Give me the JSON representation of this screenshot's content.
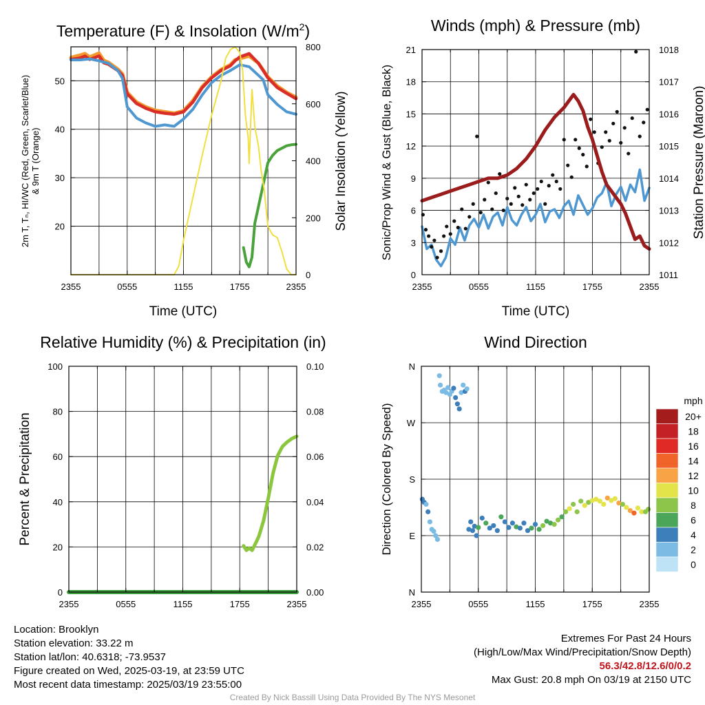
{
  "titles": {
    "temp_prefix": "Temperature (F) & Insolation (W/m",
    "temp_sup": "2",
    "temp_suffix": ")",
    "winds": "Winds (mph) & Pressure (mb)",
    "rh": "Relative Humidity (%) & Precipitation (in)",
    "dir": "Wind Direction"
  },
  "time_ticks": [
    "2355",
    "0555",
    "1155",
    "1755",
    "2355"
  ],
  "axis_labels": {
    "time": "Time (UTC)",
    "temp_y_line1": "2m T, Tₙ, HI/WC (Red, Green, Scarlet/Blue)",
    "temp_y_line2": "& 9m T (Orange)",
    "temp_y_right": "Solar Insolation (Yellow)",
    "winds_y_left": "Sonic/Prop Wind & Gust (Blue, Black)",
    "winds_y_right": "Station Pressure (Maroon)",
    "rh_y_left": "Percent & Precipitation",
    "dir_y_left": "Direction (Colored By Speed)"
  },
  "legend": {
    "unit": "mph",
    "labels": [
      "20+",
      "18",
      "16",
      "14",
      "12",
      "10",
      "8",
      "6",
      "4",
      "2",
      "0"
    ],
    "colors": [
      "#a51c1c",
      "#c42126",
      "#df2a26",
      "#f0642a",
      "#f8a446",
      "#e3e34a",
      "#8dc54b",
      "#4ca65a",
      "#3d7fba",
      "#7bbbe4",
      "#bfe3f6"
    ]
  },
  "info_left": [
    "Location: Brooklyn",
    "Station elevation: 33.22 m",
    "Station lat/lon: 40.6318; -73.9537",
    "Figure created on Wed, 2025-03-19, at 23:59 UTC",
    "Most recent data timestamp: 2025/03/19 23:55:00"
  ],
  "info_right": {
    "line1": "Extremes For Past 24 Hours",
    "line2": "(High/Low/Max Wind/Precipitation/Snow Depth)",
    "values": "56.3/42.8/12.6/0/0.2",
    "gust": "Max Gust: 20.8 mph On 03/19 at 2150 UTC"
  },
  "credit": "Created By Nick Bassill Using Data Provided By The NYS Mesonet",
  "chart_data": [
    {
      "type": "line",
      "title": "Temperature (F) & Insolation (W/m2)",
      "xlabel": "Time (UTC)",
      "x_unit": "hours after 2355 UTC",
      "ylabel": "2m T, Td, HI/WC (Red, Green, Scarlet/Blue) & 9m T (Orange)",
      "ylim": [
        10,
        57
      ],
      "y_ticks": [
        20,
        30,
        40,
        50
      ],
      "y2label": "Solar Insolation (Yellow)",
      "y2lim": [
        0,
        800
      ],
      "y2_ticks": [
        0,
        200,
        400,
        600,
        800
      ],
      "series": [
        {
          "name": "Orange",
          "color": "#f29a2e",
          "axis": "left",
          "x": [
            0,
            1,
            1.5,
            2,
            3,
            3.5,
            4,
            5,
            5.5,
            6,
            7,
            8,
            9,
            10,
            11,
            12,
            13,
            14,
            15,
            16,
            17,
            17.5,
            18,
            19,
            20,
            21,
            22,
            23,
            24
          ],
          "y": [
            54.8,
            55.3,
            55.6,
            54.9,
            55.7,
            54.2,
            53.8,
            52.4,
            51.4,
            47.6,
            45.6,
            44.6,
            43.9,
            43.6,
            43.3,
            43.8,
            45.9,
            48.8,
            50.8,
            52.3,
            53.3,
            54.3,
            54.6,
            55.1,
            53.6,
            50.8,
            48.9,
            47.6,
            46.6
          ]
        },
        {
          "name": "Red",
          "color": "#d92d27",
          "axis": "left",
          "x": [
            0,
            1,
            1.5,
            2,
            3,
            3.5,
            4,
            5,
            5.5,
            6,
            7,
            8,
            9,
            10,
            11,
            12,
            13,
            14,
            15,
            16,
            17,
            17.5,
            18,
            19,
            20,
            21,
            22,
            23,
            24
          ],
          "y": [
            54.4,
            54.7,
            55.1,
            54.4,
            55.1,
            53.7,
            53.4,
            52.1,
            51.1,
            47.3,
            45.3,
            44.3,
            43.6,
            43.3,
            43.1,
            43.6,
            45.6,
            48.6,
            50.6,
            52.1,
            53.1,
            54.1,
            54.9,
            55.6,
            53.6,
            50.6,
            48.6,
            47.4,
            46.3
          ]
        },
        {
          "name": "Blue",
          "color": "#4f97d0",
          "axis": "left",
          "x": [
            0,
            1,
            2,
            3,
            4,
            5,
            5.5,
            6,
            7,
            8,
            9,
            10,
            11,
            12,
            13,
            14,
            15,
            16,
            17,
            18,
            19,
            20,
            20.5,
            21,
            22,
            23,
            24
          ],
          "y": [
            54.3,
            54.3,
            54.5,
            54.1,
            53.6,
            52.1,
            50.5,
            44.6,
            42.3,
            41.3,
            40.6,
            40.9,
            40.6,
            42.1,
            44.1,
            47.1,
            49.6,
            51.1,
            52.1,
            53.3,
            52.9,
            51.1,
            50.2,
            47.1,
            45.1,
            43.6,
            43.1
          ]
        },
        {
          "name": "Green",
          "color": "#4aa23a",
          "axis": "left",
          "x": [
            18.4,
            18.7,
            19,
            19.3,
            19.6,
            20,
            20.5,
            21,
            21.5,
            22,
            22.5,
            23,
            23.5,
            24
          ],
          "y": [
            15.6,
            12.6,
            11.6,
            13.6,
            20.6,
            24.1,
            28.6,
            33.1,
            34.6,
            35.6,
            36.1,
            36.6,
            36.8,
            36.9
          ]
        },
        {
          "name": "Yellow",
          "color": "#f1df3f",
          "axis": "right",
          "x": [
            0,
            11,
            11.5,
            12,
            13,
            14,
            15,
            16,
            16.5,
            17,
            17.5,
            18,
            18.3,
            18.6,
            18.9,
            19,
            19.3,
            19.6,
            20,
            20.3,
            20.6,
            21,
            21.5,
            22,
            22.5,
            23,
            23.5,
            24
          ],
          "y": [
            0,
            0,
            30,
            120,
            270,
            420,
            560,
            680,
            760,
            790,
            800,
            780,
            720,
            560,
            480,
            390,
            650,
            520,
            450,
            360,
            300,
            170,
            140,
            130,
            80,
            20,
            0,
            0
          ]
        }
      ]
    },
    {
      "type": "line",
      "title": "Winds (mph) & Pressure (mb)",
      "xlabel": "Time (UTC)",
      "x_unit": "hours after 2355 UTC",
      "ylabel": "Sonic/Prop Wind & Gust (Blue, Black)",
      "ylim": [
        0,
        21
      ],
      "y_ticks": [
        0,
        3,
        6,
        9,
        12,
        15,
        18,
        21
      ],
      "y2label": "Station Pressure (Maroon)",
      "y2lim": [
        1011,
        1018
      ],
      "y2_ticks": [
        1011,
        1012,
        1013,
        1014,
        1015,
        1016,
        1017,
        1018
      ],
      "series": [
        {
          "name": "Blue",
          "color": "#4f97d0",
          "axis": "left",
          "x": [
            0,
            0.5,
            1,
            1.5,
            2,
            2.5,
            3,
            3.5,
            4,
            4.5,
            5,
            5.5,
            6,
            6.5,
            7,
            7.5,
            8,
            8.5,
            9,
            9.5,
            10,
            10.5,
            11,
            11.5,
            12,
            12.5,
            13,
            13.5,
            14,
            14.5,
            15,
            15.5,
            16,
            16.5,
            17,
            17.5,
            18,
            18.5,
            19,
            19.5,
            20,
            20.5,
            21,
            21.5,
            22,
            22.5,
            23,
            23.5,
            24
          ],
          "y": [
            4.5,
            2.4,
            2.8,
            1.4,
            0.8,
            1.6,
            3.4,
            2.8,
            4.4,
            3.2,
            4.6,
            5.2,
            4.4,
            5.6,
            4.3,
            5.4,
            5.8,
            4.6,
            6.3,
            5.1,
            4.6,
            5.6,
            6.3,
            5.0,
            5.6,
            6.6,
            4.9,
            5.9,
            6.1,
            5.3,
            6.4,
            6.9,
            5.6,
            7.4,
            6.5,
            5.6,
            6.2,
            7.2,
            7.6,
            8.6,
            6.4,
            7.5,
            8.2,
            6.9,
            8.4,
            7.7,
            9.8,
            6.9,
            8.1
          ]
        },
        {
          "name": "Black",
          "color": "#111111",
          "axis": "left",
          "dots": true,
          "x": [
            0.1,
            0.4,
            0.7,
            1.0,
            1.3,
            1.6,
            2.0,
            2.3,
            2.6,
            3.0,
            3.4,
            3.8,
            4.2,
            4.6,
            5.0,
            5.4,
            5.8,
            6.2,
            6.6,
            7.0,
            7.4,
            7.8,
            8.2,
            8.6,
            9.0,
            9.4,
            9.8,
            10.2,
            10.6,
            11.0,
            11.4,
            11.8,
            12.2,
            12.6,
            13.0,
            13.4,
            13.8,
            14.2,
            14.6,
            15.0,
            15.4,
            15.8,
            16.2,
            16.6,
            17.0,
            17.4,
            17.8,
            18.2,
            18.6,
            19.0,
            19.4,
            19.8,
            20.2,
            20.6,
            21.0,
            21.4,
            21.8,
            22.2,
            22.6,
            23.0,
            23.4,
            23.8
          ],
          "y": [
            5.6,
            4.2,
            3.6,
            2.6,
            3.2,
            1.6,
            2.2,
            3.6,
            4.5,
            3.8,
            5.0,
            4.4,
            6.1,
            4.3,
            5.4,
            6.6,
            12.9,
            5.8,
            7.0,
            8.6,
            6.1,
            7.6,
            9.4,
            6.0,
            7.1,
            6.6,
            8.1,
            7.3,
            6.5,
            8.4,
            7.0,
            7.6,
            8.0,
            8.7,
            6.6,
            8.3,
            9.3,
            8.7,
            8.0,
            12.6,
            10.2,
            9.1,
            12.6,
            11.8,
            11.2,
            10.1,
            14.5,
            13.3,
            10.4,
            11.9,
            13.3,
            12.5,
            14.1,
            15.2,
            12.3,
            13.7,
            11.3,
            14.6,
            20.8,
            12.9,
            14.2,
            15.4
          ]
        },
        {
          "name": "Maroon",
          "color": "#9a1c1c",
          "axis": "right",
          "x": [
            0,
            1,
            2,
            3,
            4,
            5,
            6,
            7,
            8,
            9,
            10,
            11,
            12,
            13,
            14,
            15,
            16,
            16.5,
            17,
            17.5,
            18,
            18.5,
            19,
            19.5,
            20,
            20.5,
            21,
            21.5,
            22,
            22.5,
            23,
            23.5,
            24
          ],
          "y": [
            1013.3,
            1013.4,
            1013.5,
            1013.6,
            1013.7,
            1013.8,
            1013.9,
            1014.0,
            1014.0,
            1014.1,
            1014.3,
            1014.6,
            1015.0,
            1015.5,
            1015.9,
            1016.2,
            1016.6,
            1016.4,
            1016.1,
            1015.6,
            1015.2,
            1014.7,
            1014.2,
            1013.8,
            1013.6,
            1013.4,
            1013.2,
            1012.9,
            1012.5,
            1012.1,
            1012.2,
            1011.9,
            1011.8
          ]
        }
      ]
    },
    {
      "type": "line",
      "title": "Relative Humidity (%) & Precipitation (in)",
      "xlabel": "",
      "x_unit": "hours after 2355 UTC",
      "ylabel": "Percent & Precipitation",
      "ylim": [
        0,
        100
      ],
      "y_ticks": [
        0,
        20,
        40,
        60,
        80,
        100
      ],
      "y2lim": [
        0,
        0.1
      ],
      "y2_ticks": [
        "0.00",
        "0.02",
        "0.04",
        "0.06",
        "0.08",
        "0.10"
      ],
      "series": [
        {
          "name": "Precipitation",
          "color": "#3d9c3d",
          "axis": "left",
          "x": [
            0,
            24
          ],
          "y": [
            0,
            0
          ]
        },
        {
          "name": "RH",
          "color": "#8cc63f",
          "axis": "left",
          "x": [
            18.4,
            18.7,
            19,
            19.3,
            19.6,
            20,
            20.5,
            21,
            21.5,
            22,
            22.5,
            23,
            23.5,
            24
          ],
          "y": [
            20.5,
            18.5,
            19.5,
            18.5,
            21.0,
            24.5,
            31.5,
            41.5,
            52.5,
            60.5,
            64.5,
            66.5,
            68.0,
            69.0
          ]
        }
      ]
    },
    {
      "type": "scatter",
      "title": "Wind Direction",
      "xlabel": "",
      "x_unit": "hours after 2355 UTC",
      "ylabel": "Direction (Colored By Speed)",
      "y_ticks": [
        "N",
        "E",
        "S",
        "W",
        "N"
      ],
      "ylim": [
        0,
        360
      ],
      "color_scale_mph": [
        0,
        2,
        4,
        6,
        8,
        10,
        12,
        14,
        16,
        18,
        20
      ],
      "points": {
        "x": [
          0.1,
          0.3,
          0.5,
          0.7,
          0.9,
          1.1,
          1.3,
          1.5,
          1.7,
          1.9,
          2.0,
          2.2,
          2.4,
          2.6,
          2.8,
          3.0,
          3.2,
          3.4,
          3.6,
          3.8,
          4.0,
          4.2,
          4.4,
          4.6,
          4.8,
          5.0,
          5.2,
          5.4,
          5.6,
          5.8,
          6.0,
          6.4,
          6.8,
          7.2,
          7.6,
          8.0,
          8.4,
          8.8,
          9.2,
          9.6,
          10.0,
          10.4,
          10.8,
          11.2,
          11.6,
          12.0,
          12.4,
          12.8,
          13.2,
          13.6,
          14.0,
          14.4,
          14.8,
          15.2,
          15.6,
          16.0,
          16.4,
          16.8,
          17.2,
          17.6,
          18.0,
          18.4,
          18.8,
          19.2,
          19.6,
          20.0,
          20.4,
          20.8,
          21.2,
          21.6,
          22.0,
          22.4,
          22.8,
          23.2,
          23.6,
          23.9
        ],
        "y": [
          148,
          143,
          140,
          128,
          112,
          100,
          97,
          90,
          84,
          345,
          330,
          320,
          322,
          318,
          326,
          315,
          320,
          325,
          310,
          300,
          292,
          318,
          330,
          320,
          324,
          100,
          112,
          98,
          105,
          90,
          103,
          118,
          110,
          102,
          106,
          98,
          120,
          112,
          103,
          110,
          104,
          102,
          110,
          98,
          102,
          108,
          100,
          106,
          113,
          110,
          108,
          115,
          120,
          128,
          133,
          140,
          128,
          145,
          138,
          143,
          146,
          148,
          145,
          140,
          150,
          146,
          149,
          142,
          140,
          135,
          130,
          126,
          134,
          128,
          128,
          132
        ],
        "mph": [
          3,
          3,
          2,
          3,
          2,
          2,
          1,
          1,
          1,
          1,
          1,
          1,
          1,
          1,
          2,
          2,
          2,
          3,
          3,
          4,
          3,
          2,
          2,
          3,
          2,
          3,
          4,
          3,
          4,
          4,
          6,
          4,
          5,
          4,
          4,
          3,
          6,
          4,
          4,
          3,
          5,
          4,
          4,
          4,
          5,
          4,
          6,
          7,
          5,
          6,
          7,
          7,
          6,
          7,
          9,
          8,
          7,
          8,
          9,
          8,
          9,
          10,
          9,
          9,
          11,
          10,
          10,
          11,
          8,
          9,
          12,
          13,
          9,
          10,
          8,
          7
        ]
      }
    }
  ]
}
